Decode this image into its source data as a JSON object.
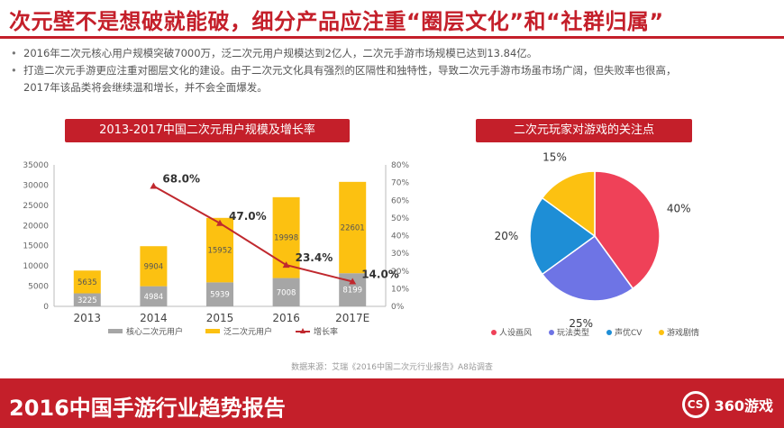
{
  "header": {
    "title": "次元壁不是想破就能破，细分产品应注重“圈层文化”和“社群归属”"
  },
  "bullets": [
    "2016年二次元核心用户规模突破7000万，泛二次元用户规模达到2亿人，二次元手游市场规模已达到13.84亿。",
    "打造二次元手游更应注重对圈层文化的建设。由于二次元文化具有强烈的区隔性和独特性，导致二次元手游市场虽市场广阔，但失败率也很高，",
    "2017年该品类将会继续温和增长，并不会全面爆发。"
  ],
  "chart_data": [
    {
      "type": "bar",
      "title": "2013-2017中国二次元用户规模及增长率",
      "categories": [
        "2013",
        "2014",
        "2015",
        "2016",
        "2017E"
      ],
      "series": [
        {
          "name": "核心二次元用户",
          "values": [
            3225,
            4984,
            5939,
            7008,
            8199
          ],
          "color": "#a6a6a6",
          "stack": "users"
        },
        {
          "name": "泛二次元用户",
          "values": [
            5635,
            9904,
            15952,
            19998,
            22601
          ],
          "color": "#fcc111",
          "stack": "users"
        },
        {
          "name": "增长率",
          "type": "line",
          "axis": "right",
          "x": [
            "2014",
            "2015",
            "2016",
            "2017E"
          ],
          "values": [
            68.0,
            47.0,
            23.4,
            14.0
          ],
          "labels": [
            "68.0%",
            "47.0%",
            "23.4%",
            "14.0%"
          ],
          "color": "#c0282e"
        }
      ],
      "ylim": [
        0,
        35000
      ],
      "yticks": [
        "0",
        "5000",
        "10000",
        "15000",
        "20000",
        "25000",
        "30000",
        "35000"
      ],
      "y2lim": [
        0,
        80
      ],
      "y2ticks": [
        "0%",
        "10%",
        "20%",
        "30%",
        "40%",
        "50%",
        "60%",
        "70%",
        "80%"
      ],
      "legend": "bottom",
      "grid": false
    },
    {
      "type": "pie",
      "title": "二次元玩家对游戏的关注点",
      "labels": [
        "人设画风",
        "玩法类型",
        "声优CV",
        "游戏剧情"
      ],
      "values": [
        40,
        25,
        20,
        15
      ],
      "value_labels": [
        "40%",
        "25%",
        "20%",
        "15%"
      ],
      "colors": [
        "#ef4158",
        "#6e74e5",
        "#1e8ed6",
        "#fcc111"
      ],
      "legend": "bottom"
    }
  ],
  "source_note": "数据来源：艾瑞《2016中国二次元行业报告》A8站调查",
  "footer": {
    "title": "2016中国手游行业趋势报告",
    "logo_mark": "CS",
    "logo_text": "360游戏"
  }
}
